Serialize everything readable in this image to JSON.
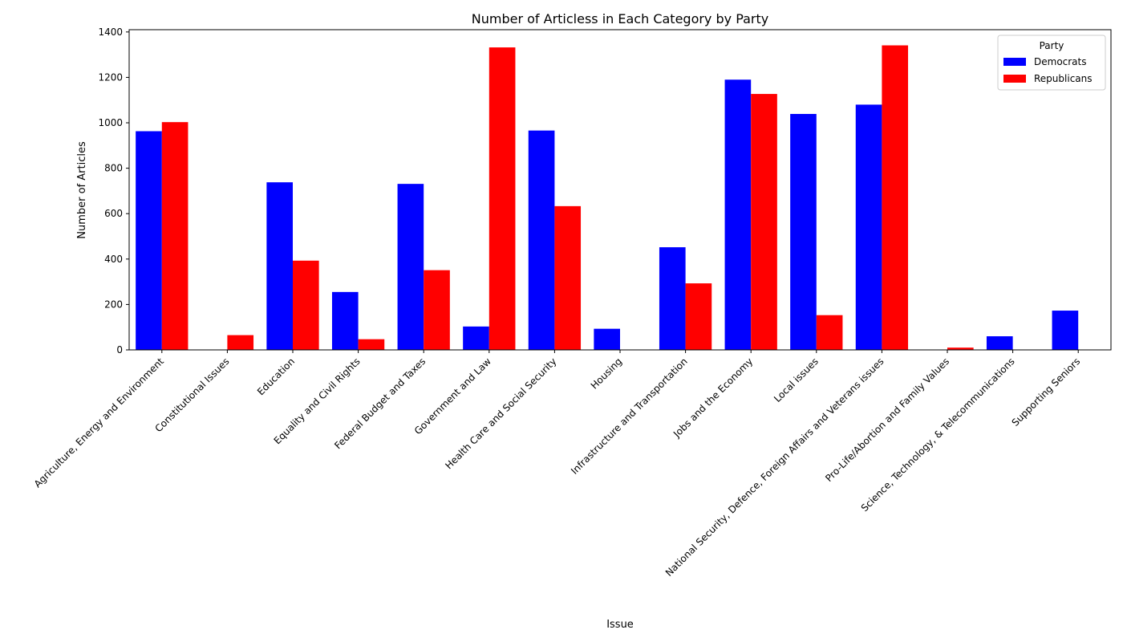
{
  "chart_data": {
    "type": "bar",
    "title": "Number of Articless in Each Category by Party",
    "xlabel": "Issue",
    "ylabel": "Number of Articles",
    "ylim": [
      0,
      1410
    ],
    "yticks": [
      0,
      200,
      400,
      600,
      800,
      1000,
      1200,
      1400
    ],
    "grid": false,
    "legend": {
      "title": "Party",
      "position": "top-right"
    },
    "categories": [
      "Agriculture, Energy and Environment",
      "Constitutional Issues",
      "Education",
      "Equality and Civil Rights",
      "Federal Budget and Taxes",
      "Government and Law",
      "Health Care and Social Security",
      "Housing",
      "Infrastructure and Transportation",
      "Jobs and the Economy",
      "Local issues",
      "National Security, Defence, Foreign Affairs and Veterans issues",
      "Pro-Life/Abortion and Family Values",
      "Science, Technology, & Telecommunications",
      "Supporting Seniors"
    ],
    "series": [
      {
        "name": "Democrats",
        "color": "#0000ff",
        "values": [
          963,
          0,
          738,
          255,
          731,
          103,
          966,
          93,
          452,
          1190,
          1039,
          1080,
          0,
          60,
          173
        ]
      },
      {
        "name": "Republicans",
        "color": "#ff0000",
        "values": [
          1003,
          65,
          393,
          47,
          351,
          1332,
          633,
          0,
          293,
          1127,
          153,
          1341,
          10,
          0,
          0
        ]
      }
    ]
  }
}
